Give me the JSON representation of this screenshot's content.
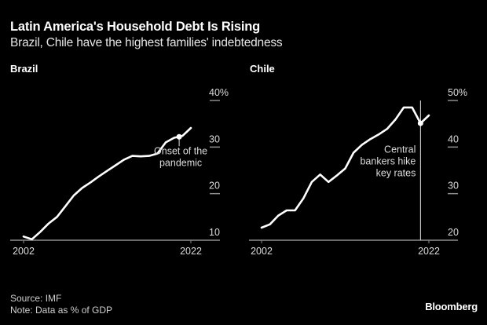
{
  "header": {
    "title": "Latin America's Household Debt Is Rising",
    "subtitle": "Brazil, Chile have the highest families' indebtedness"
  },
  "footer": {
    "source": "Source: IMF",
    "note": "Note: Data as % of GDP",
    "brand": "Bloomberg"
  },
  "colors": {
    "background": "#000000",
    "line": "#ffffff",
    "axis": "#8c8c8c",
    "text": "#dcdcdc"
  },
  "chart_data": [
    {
      "type": "line",
      "title": "Brazil",
      "xlabel": "",
      "ylabel": "% of GDP",
      "x": [
        2002,
        2003,
        2004,
        2005,
        2006,
        2007,
        2008,
        2009,
        2010,
        2011,
        2012,
        2013,
        2014,
        2015,
        2016,
        2017,
        2018,
        2019,
        2020,
        2021,
        2022
      ],
      "values": [
        10.8,
        10.2,
        11.8,
        13.6,
        15.0,
        17.3,
        19.6,
        21.2,
        22.4,
        23.7,
        24.9,
        26.1,
        27.3,
        28.1,
        28.0,
        28.1,
        28.6,
        31.0,
        32.0,
        32.4,
        34.1
      ],
      "xlim": [
        2002,
        2022
      ],
      "ylim": [
        10,
        40
      ],
      "x_ticks": [
        "2002",
        "2022"
      ],
      "y_ticks": [
        {
          "value": 10,
          "label": "10"
        },
        {
          "value": 20,
          "label": "20"
        },
        {
          "value": 30,
          "label": "30"
        },
        {
          "value": 40,
          "label": "40%"
        }
      ],
      "annotation": {
        "x": 2020.6,
        "value": 32.2,
        "lines": [
          "Onset of the",
          "pandemic"
        ],
        "style": "dot"
      },
      "grid": false
    },
    {
      "type": "line",
      "title": "Chile",
      "xlabel": "",
      "ylabel": "% of GDP",
      "x": [
        2002,
        2003,
        2004,
        2005,
        2006,
        2007,
        2008,
        2009,
        2010,
        2011,
        2012,
        2013,
        2014,
        2015,
        2016,
        2017,
        2018,
        2019,
        2020,
        2021,
        2022
      ],
      "values": [
        22.7,
        23.4,
        25.3,
        26.4,
        26.4,
        29.0,
        32.5,
        34.1,
        32.5,
        33.9,
        35.4,
        38.8,
        40.5,
        41.7,
        42.7,
        43.9,
        45.9,
        48.5,
        48.5,
        45.1,
        46.8
      ],
      "xlim": [
        2002,
        2022
      ],
      "ylim": [
        20,
        50
      ],
      "x_ticks": [
        "2002",
        "2022"
      ],
      "y_ticks": [
        {
          "value": 20,
          "label": "20"
        },
        {
          "value": 30,
          "label": "30"
        },
        {
          "value": 40,
          "label": "40"
        },
        {
          "value": 50,
          "label": "50%"
        }
      ],
      "annotation": {
        "x": 2021,
        "value": 45.1,
        "lines": [
          "Central",
          "bankers hike",
          "key rates"
        ],
        "style": "vline"
      },
      "grid": false
    }
  ]
}
